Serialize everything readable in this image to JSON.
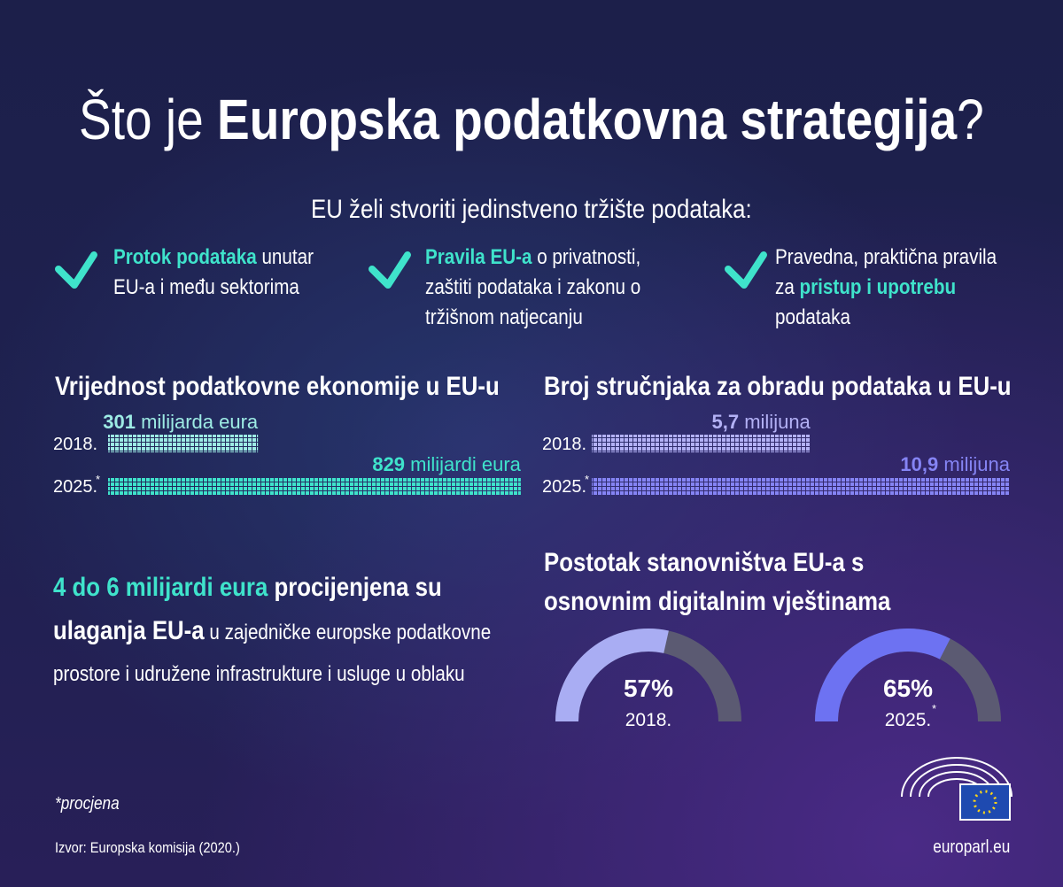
{
  "title": {
    "pre": "Što je",
    "main": "Europska podatkovna strategija",
    "post": "?"
  },
  "intro": "EU želi stvoriti jedinstveno tržište podataka:",
  "goals": [
    {
      "before": "",
      "highlight": "Protok podataka",
      "after": " unutar EU-a i među sektorima"
    },
    {
      "before": "",
      "highlight": "Pravila EU-a",
      "after": " o privatnosti, zaštiti podataka i zakonu o tržišnom natjecanju"
    },
    {
      "before": "Pravedna, praktična pravila za ",
      "highlight": "pristup i upotrebu",
      "after": " podataka"
    }
  ],
  "investment": {
    "highlight": "4 do 6 milijardi eura",
    "bold": " procijenjena su ulaganja EU-a",
    "text": " u zajedničke europske podatkovne prostore i udružene infrastrukture i usluge u oblaku"
  },
  "footnote": {
    "mark": "*",
    "text": "procjena"
  },
  "source": "Izvor: Europska komisija (2020.)",
  "site": "europarl.eu",
  "chart_data": [
    {
      "type": "bar",
      "title": "Vrijednost podatkovne ekonomije u EU-u",
      "categories": [
        "2018.",
        "2025."
      ],
      "values": [
        301,
        829
      ],
      "units": [
        "milijarda eura",
        "milijardi eura"
      ],
      "colors": [
        "#9debe4",
        "#3fe3cb"
      ]
    },
    {
      "type": "bar",
      "title": "Broj stručnjaka za obradu podataka u EU-u",
      "categories": [
        "2018.",
        "2025."
      ],
      "values": [
        5.7,
        10.9
      ],
      "value_labels": [
        "5,7",
        "10,9"
      ],
      "unit": "milijuna",
      "colors": [
        "#b3b1f5",
        "#8584f4"
      ]
    },
    {
      "type": "gauge",
      "title": "Postotak stanovništva EU-a s osnovnim digitalnim vještinama",
      "categories": [
        "2018.",
        "2025."
      ],
      "values": [
        57,
        65
      ],
      "value_labels": [
        "57%",
        "65%"
      ],
      "ylim": [
        0,
        100
      ],
      "colors": [
        "#a9adf3",
        "#6d72f2"
      ],
      "track_color": "#5b5a72"
    }
  ]
}
